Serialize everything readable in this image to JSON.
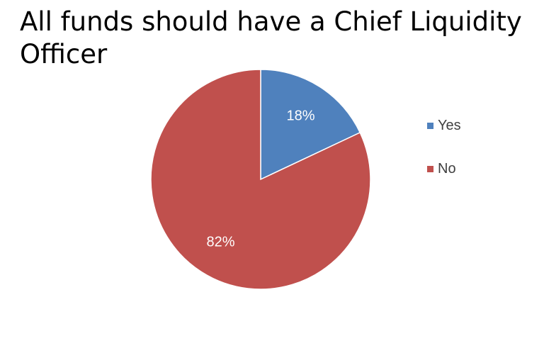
{
  "chart_data": {
    "type": "pie",
    "title": "All funds should have a Chief Liquidity Officer",
    "categories": [
      "Yes",
      "No"
    ],
    "values": [
      18,
      82
    ],
    "data_labels": [
      "18%",
      "82%"
    ],
    "colors": [
      "#4F81BD",
      "#C0504D"
    ],
    "legend_position": "right"
  }
}
